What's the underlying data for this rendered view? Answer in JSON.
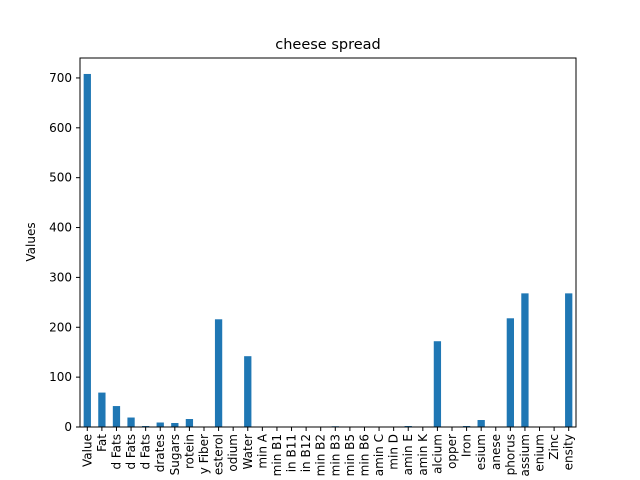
{
  "chart_data": {
    "type": "bar",
    "title": "cheese spread",
    "xlabel": "",
    "ylabel": "Values",
    "ylim": [
      0,
      740
    ],
    "yticks": [
      0,
      100,
      200,
      300,
      400,
      500,
      600,
      700
    ],
    "grid": false,
    "legend": "none",
    "bar_color": "#1f77b4",
    "categories": [
      "Value",
      "Fat",
      "d Fats",
      "d Fats",
      "d Fats",
      "drates",
      "Sugars",
      "rotein",
      "y Fiber",
      "esterol",
      "odium",
      "Water",
      "min A",
      "min B1",
      "in B11",
      "in B12",
      "min B2",
      "min B3",
      "min B5",
      "min B6",
      "amin C",
      "min D",
      "amin E",
      "amin K",
      "alcium",
      "opper",
      "Iron",
      "esium",
      "anese",
      "phorus",
      "assium",
      "enium",
      "Zinc",
      "ensity"
    ],
    "values": [
      708,
      69,
      42,
      19,
      2,
      9,
      8,
      16,
      0,
      216,
      0,
      142,
      0.3,
      0.1,
      0,
      0.3,
      0.4,
      1.5,
      0.6,
      0.2,
      0,
      0.2,
      2,
      0.3,
      172,
      0.3,
      2,
      14,
      0.1,
      218,
      268,
      0.1,
      0.7,
      268
    ]
  }
}
